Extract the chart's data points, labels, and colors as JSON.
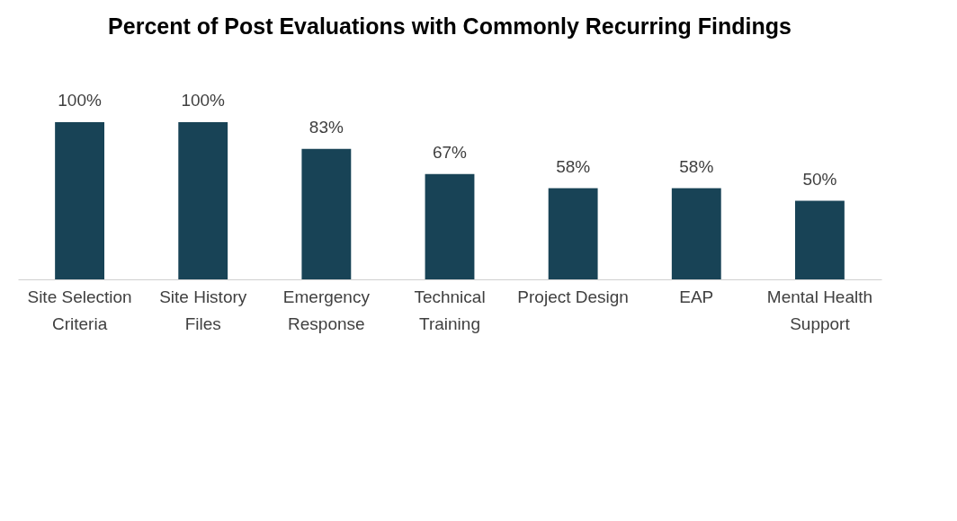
{
  "chart_data": {
    "type": "bar",
    "title": "Percent of Post Evaluations with Commonly Recurring Findings",
    "categories": [
      "Site Selection Criteria",
      "Site History Files",
      "Emergency Response",
      "Technical Training",
      "Project Design",
      "EAP",
      "Mental Health Support"
    ],
    "values": [
      100,
      100,
      83,
      67,
      58,
      58,
      50
    ],
    "value_labels": [
      "100%",
      "100%",
      "83%",
      "67%",
      "58%",
      "58%",
      "50%"
    ],
    "color": "#184356"
  }
}
